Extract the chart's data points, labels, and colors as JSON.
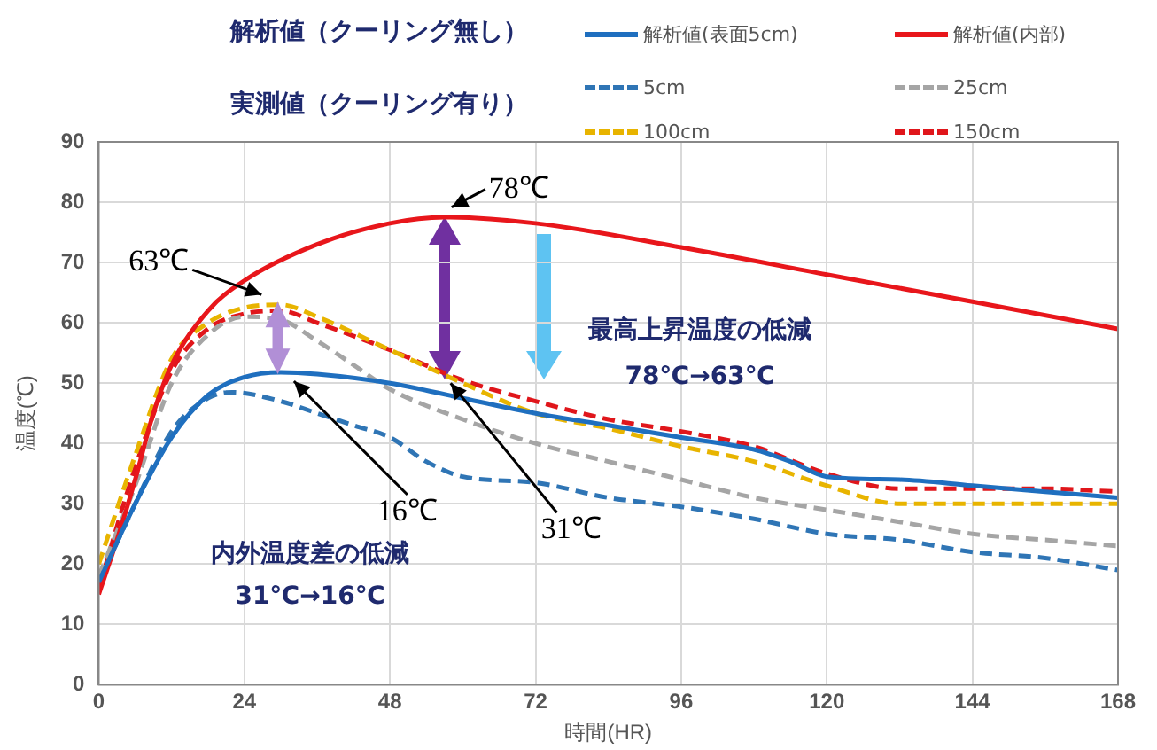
{
  "chart_data": {
    "type": "line",
    "xlabel": "時間(HR)",
    "ylabel": "温度(℃)",
    "xlim": [
      0,
      168
    ],
    "xticks": [
      0,
      24,
      48,
      72,
      96,
      120,
      144,
      168
    ],
    "ylim": [
      0,
      90
    ],
    "yticks": [
      0,
      10,
      20,
      30,
      40,
      50,
      60,
      70,
      80,
      90
    ],
    "grid": true,
    "legend": "top",
    "marker": "none",
    "series": [
      {
        "name": "解析値(表面5cm)",
        "color": "#1f6fbf",
        "line_style": "solid",
        "x": [
          0,
          6,
          12,
          18,
          24,
          30,
          36,
          48,
          60,
          72,
          84,
          96,
          108,
          114,
          120,
          132,
          144,
          156,
          168
        ],
        "values": [
          17,
          30,
          41,
          48,
          51,
          51.8,
          51.5,
          50,
          47.5,
          45,
          43,
          41,
          39,
          37,
          34.5,
          34,
          33,
          32,
          31
        ]
      },
      {
        "name": "解析値(内部)",
        "color": "#e8161b",
        "line_style": "solid",
        "x": [
          0,
          3,
          6,
          9,
          12,
          18,
          24,
          36,
          48,
          57,
          72,
          96,
          120,
          144,
          168
        ],
        "values": [
          15,
          24,
          34,
          45,
          53,
          62,
          67,
          73,
          76.5,
          77.5,
          76.5,
          72.5,
          68,
          63.5,
          59
        ]
      },
      {
        "name": "5cm",
        "color": "#2f75b5",
        "line_style": "dashed",
        "x": [
          0,
          6,
          12,
          18,
          22,
          30,
          36,
          42,
          48,
          54,
          60,
          72,
          84,
          96,
          108,
          120,
          132,
          144,
          156,
          168
        ],
        "values": [
          17,
          30,
          42,
          47.5,
          48.5,
          47,
          45,
          43,
          41,
          37,
          34.5,
          33.5,
          31,
          29.5,
          27.5,
          25,
          24,
          22,
          21,
          19
        ]
      },
      {
        "name": "25cm",
        "color": "#a5a5a5",
        "line_style": "dashed",
        "x": [
          0,
          6,
          12,
          18,
          24,
          30,
          36,
          42,
          48,
          60,
          72,
          84,
          96,
          108,
          120,
          132,
          144,
          156,
          168
        ],
        "values": [
          18,
          33,
          50,
          58,
          61,
          60.5,
          57,
          53,
          49,
          44,
          40,
          37,
          34,
          31,
          29,
          27,
          25,
          24,
          23
        ]
      },
      {
        "name": "100cm",
        "color": "#e8b400",
        "line_style": "dashed",
        "x": [
          0,
          6,
          12,
          18,
          24,
          30,
          36,
          48,
          60,
          72,
          84,
          96,
          108,
          120,
          132,
          144,
          156,
          168
        ],
        "values": [
          20,
          38,
          54,
          60,
          62.5,
          63,
          61,
          55.5,
          50,
          45,
          42.5,
          39.5,
          37,
          33,
          30,
          30,
          30,
          30
        ]
      },
      {
        "name": "150cm",
        "color": "#e0161b",
        "line_style": "dashed",
        "x": [
          0,
          6,
          12,
          18,
          24,
          30,
          36,
          48,
          60,
          72,
          84,
          96,
          108,
          120,
          132,
          144,
          156,
          168
        ],
        "values": [
          16,
          36,
          52,
          59,
          61.5,
          62,
          60,
          55.5,
          50.5,
          47,
          44,
          42,
          39.5,
          35,
          32.5,
          32.5,
          32.5,
          32
        ]
      }
    ],
    "annotations": [
      "解析値（クーリング無し）",
      "実測値（クーリング有り）",
      {
        "text": "63℃",
        "x": 28,
        "y": 63.5
      },
      {
        "text": "78℃",
        "x": 57,
        "y": 78
      },
      {
        "text": "16℃",
        "x": 31,
        "y": 51.5
      },
      {
        "text": "31℃",
        "x": 58,
        "y": 50
      },
      "最高上昇温度の低減",
      "78℃→63℃",
      "内外温度差の低減",
      "31℃→16℃"
    ]
  }
}
